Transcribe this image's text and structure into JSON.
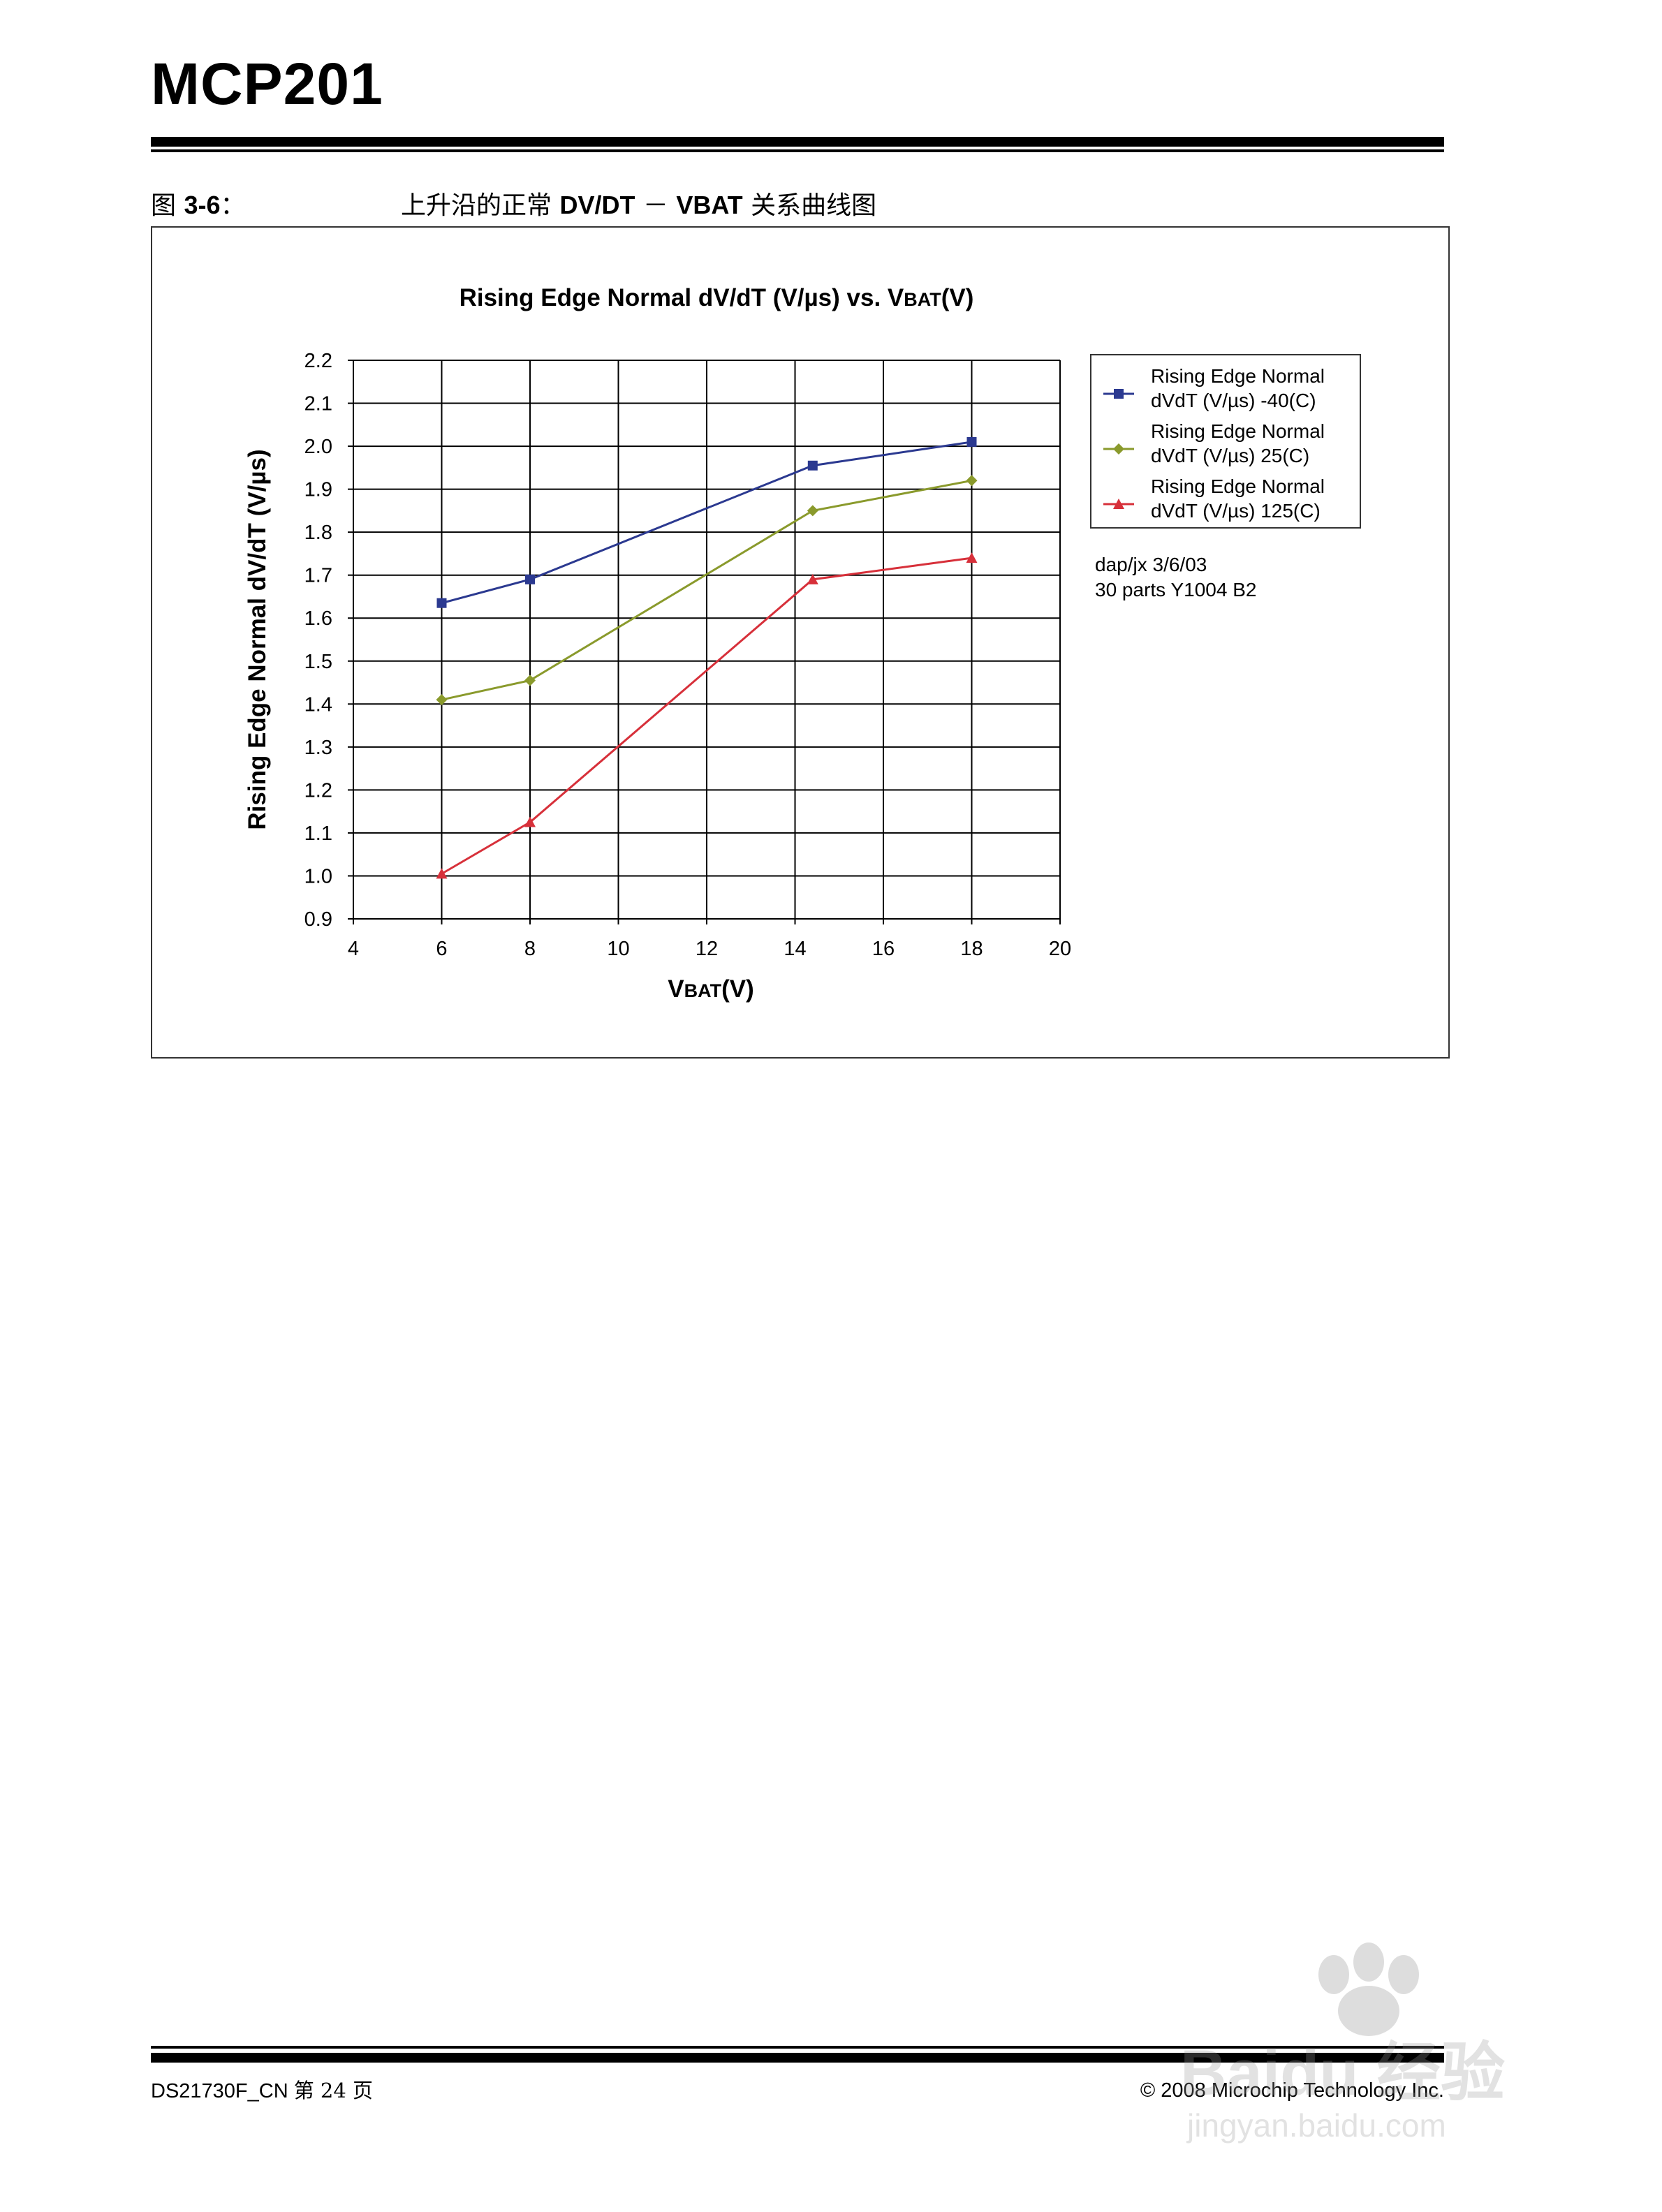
{
  "header": {
    "doc_title": "MCP201"
  },
  "figure": {
    "label_prefix": "图 ",
    "label_number": "3-6",
    "label_suffix": "：",
    "caption_cn1": "上升沿的正常 ",
    "caption_bold1": "DV/DT",
    "caption_dash": " － ",
    "caption_bold2": "VBAT",
    "caption_cn2": " 关系曲线图"
  },
  "chart_data": {
    "type": "line",
    "title_main": "Rising Edge Normal dV/dT (V/µs) vs. V",
    "title_sub": "BAT",
    "title_tail": "(V)",
    "xlabel_main": "V",
    "xlabel_sub": "BAT",
    "xlabel_tail": "(V)",
    "ylabel": "Rising Edge Normal dV/dT (V/µs)",
    "xlim": [
      4,
      20
    ],
    "ylim": [
      0.9,
      2.2
    ],
    "x_ticks": [
      "4",
      "6",
      "8",
      "10",
      "12",
      "14",
      "16",
      "18",
      "20"
    ],
    "y_ticks": [
      "0.9",
      "1.0",
      "1.1",
      "1.2",
      "1.3",
      "1.4",
      "1.5",
      "1.6",
      "1.7",
      "1.8",
      "1.9",
      "2.0",
      "2.1",
      "2.2"
    ],
    "grid": true,
    "legend_position": "top-right, outside plot",
    "series": [
      {
        "name_line1": "Rising Edge Normal",
        "name_line2": "dVdT (V/µs) -40(C)",
        "color": "#2b3990",
        "marker": "square",
        "x": [
          6,
          8,
          14.4,
          18
        ],
        "y": [
          1.635,
          1.69,
          1.955,
          2.01
        ]
      },
      {
        "name_line1": "Rising Edge Normal",
        "name_line2": "dVdT (V/µs) 25(C)",
        "color": "#8a9a2c",
        "marker": "diamond",
        "x": [
          6,
          8,
          14.4,
          18
        ],
        "y": [
          1.41,
          1.455,
          1.85,
          1.92
        ]
      },
      {
        "name_line1": "Rising Edge Normal",
        "name_line2": "dVdT (V/µs) 125(C)",
        "color": "#d7303a",
        "marker": "triangle",
        "x": [
          6,
          8,
          14.4,
          18
        ],
        "y": [
          1.005,
          1.125,
          1.69,
          1.74
        ]
      }
    ],
    "annotation_line1": "dap/jx 3/6/03",
    "annotation_line2": "30 parts Y1004 B2"
  },
  "footer": {
    "doc_id": "DS21730F_CN ",
    "page_label": "第 24 页",
    "copyright": "© 2008 Microchip Technology Inc."
  },
  "watermark": {
    "line1": "Baidu 经验",
    "line2": "jingyan.baidu.com"
  }
}
